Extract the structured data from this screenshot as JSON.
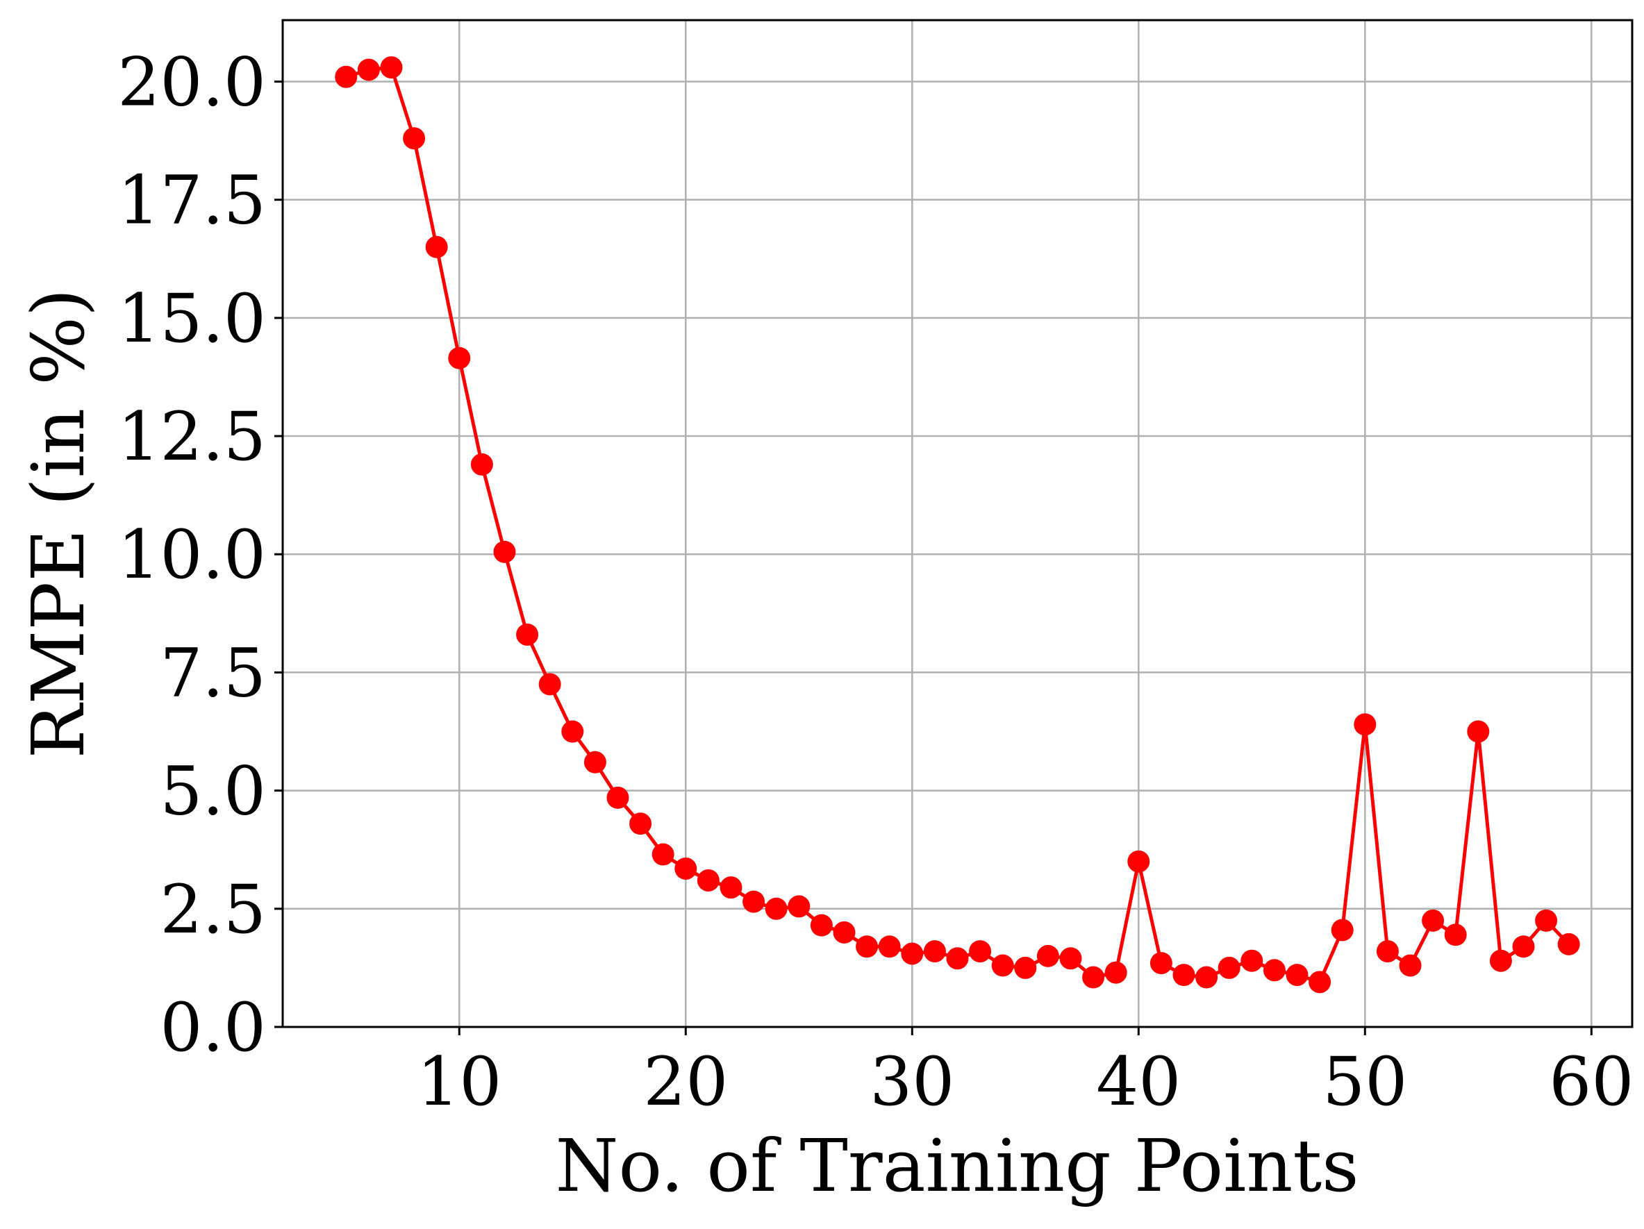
{
  "chart_data": {
    "type": "line",
    "title": "",
    "xlabel": "No. of Training Points",
    "ylabel": "RMPE (in %)",
    "xlim": [
      2.2,
      61.8
    ],
    "ylim": [
      0,
      21.3
    ],
    "xticks": [
      10,
      20,
      30,
      40,
      50,
      60
    ],
    "yticks": [
      0,
      2.5,
      5,
      7.5,
      10,
      12.5,
      15,
      17.5,
      20
    ],
    "xtick_labels": [
      "10",
      "20",
      "30",
      "40",
      "50",
      "60"
    ],
    "ytick_labels": [
      "0.0",
      "2.5",
      "5.0",
      "7.5",
      "10.0",
      "12.5",
      "15.0",
      "17.5",
      "20.0"
    ],
    "grid": true,
    "legend": "none",
    "color": "#ff0000",
    "marker": "circle",
    "series": [
      {
        "x": [
          5,
          6,
          7,
          8,
          9,
          10,
          11,
          12,
          13,
          14,
          15,
          16,
          17,
          18,
          19,
          20,
          21,
          22,
          23,
          24,
          25,
          26,
          27,
          28,
          29,
          30,
          31,
          32,
          33,
          34,
          35,
          36,
          37,
          38,
          39,
          40,
          41,
          42,
          43,
          44,
          45,
          46,
          47,
          48,
          49,
          50,
          51,
          52,
          53,
          54,
          55,
          56,
          57,
          58,
          59
        ],
        "y": [
          20.1,
          20.25,
          20.3,
          18.8,
          16.5,
          14.15,
          11.9,
          10.05,
          8.3,
          7.25,
          6.25,
          5.6,
          4.85,
          4.3,
          3.65,
          3.35,
          3.1,
          2.95,
          2.65,
          2.5,
          2.55,
          2.15,
          2.0,
          1.7,
          1.7,
          1.55,
          1.6,
          1.45,
          1.6,
          1.3,
          1.25,
          1.5,
          1.45,
          1.05,
          1.15,
          3.5,
          1.35,
          1.1,
          1.05,
          1.25,
          1.4,
          1.2,
          1.1,
          0.95,
          2.05,
          6.4,
          1.6,
          1.3,
          2.25,
          1.95,
          6.25,
          1.4,
          1.7,
          2.25,
          1.75
        ]
      }
    ]
  }
}
